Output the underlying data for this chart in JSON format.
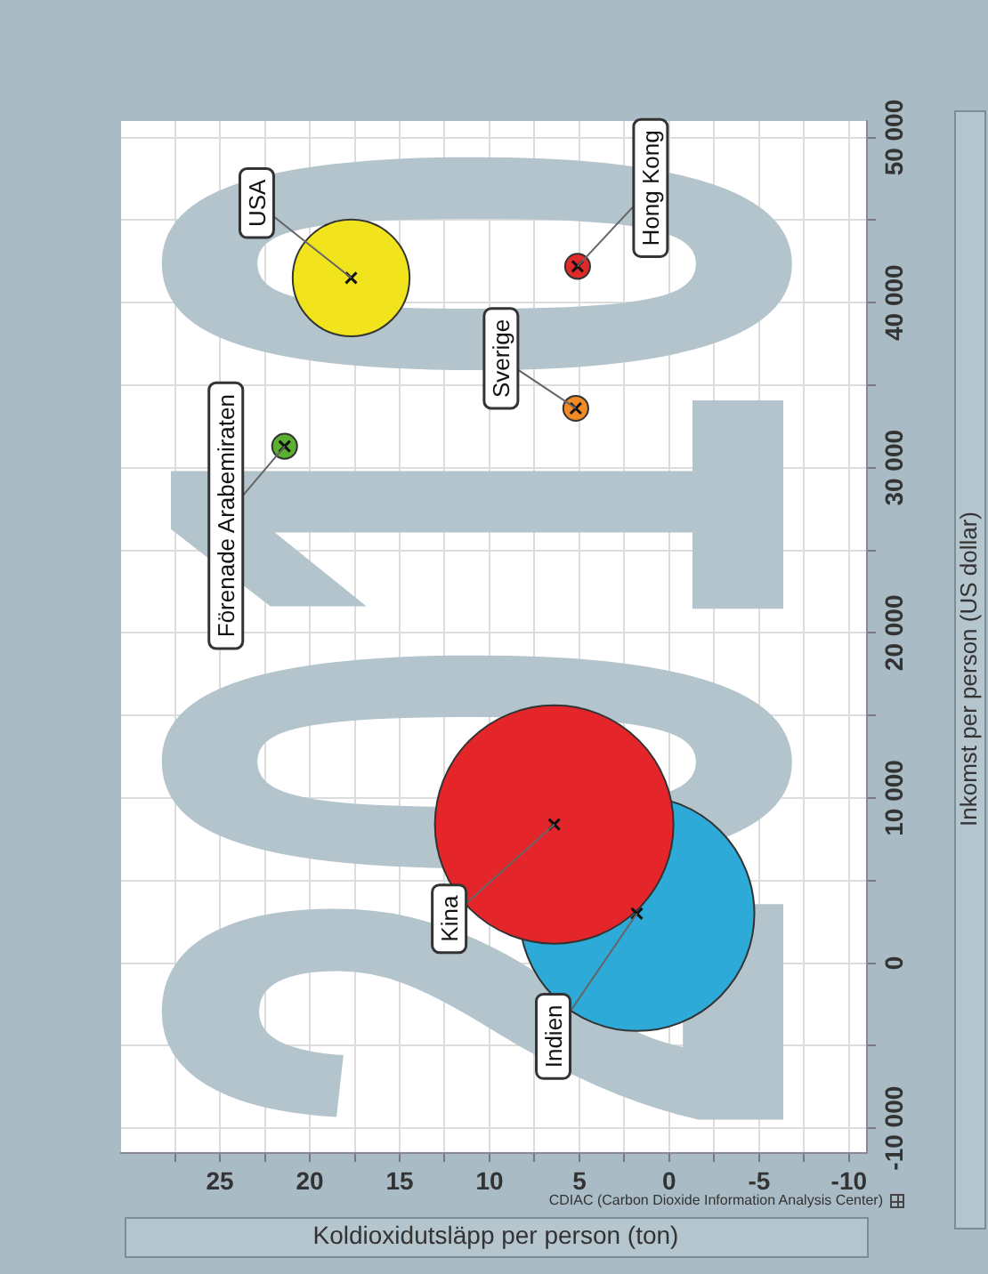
{
  "chart_data": {
    "type": "bubble",
    "xlabel": "Koldioxidutsläpp per person (ton)",
    "ylabel": "Inkomst per person (US dollar)",
    "xlim": [
      30.5,
      -11
    ],
    "ylim": [
      -11500,
      51000
    ],
    "xticks": [
      {
        "value": 27.5,
        "label": null
      },
      25,
      {
        "value": 22.5,
        "label": null
      },
      20,
      {
        "value": 17.5,
        "label": null
      },
      15,
      {
        "value": 12.5,
        "label": null
      },
      10,
      {
        "value": 7.5,
        "label": null
      },
      5,
      {
        "value": 2.5,
        "label": null
      },
      0,
      {
        "value": -2.5,
        "label": null
      },
      -5,
      {
        "value": -7.5,
        "label": null
      },
      -10
    ],
    "yticks": [
      {
        "value": -10000,
        "label": "-10 000"
      },
      {
        "value": -5000,
        "label": null
      },
      0,
      {
        "value": 5000,
        "label": null
      },
      {
        "value": 10000,
        "label": "10 000"
      },
      {
        "value": 15000,
        "label": null
      },
      {
        "value": 20000,
        "label": "20 000"
      },
      {
        "value": 25000,
        "label": null
      },
      {
        "value": 30000,
        "label": "30 000"
      },
      {
        "value": 35000,
        "label": null
      },
      {
        "value": 40000,
        "label": "40 000"
      },
      {
        "value": 45000,
        "label": null
      },
      {
        "value": 50000,
        "label": "50 000"
      }
    ],
    "grid": true,
    "annotations": [
      "2010",
      "CDIAC (Carbon Dioxide Information Analysis Center)"
    ],
    "series": [
      {
        "name": "USA",
        "color": "#f2e41c",
        "x": [
          17.7
        ],
        "values": [
          41500
        ],
        "sizes": [
          0.24
        ]
      },
      {
        "name": "Hong Kong",
        "color": "#e02a2a",
        "x": [
          5.1
        ],
        "values": [
          42200
        ],
        "sizes": [
          0.011
        ]
      },
      {
        "name": "Sverige",
        "color": "#f08a24",
        "x": [
          5.2
        ],
        "values": [
          33600
        ],
        "sizes": [
          0.011
        ]
      },
      {
        "name": "Förenade Arabemiraten",
        "color": "#5cb030",
        "x": [
          21.4
        ],
        "values": [
          31300
        ],
        "sizes": [
          0.011
        ]
      },
      {
        "name": "Kina",
        "color": "#e4252a",
        "x": [
          6.4
        ],
        "values": [
          8400
        ],
        "sizes": [
          1
        ]
      },
      {
        "name": "Indien",
        "color": "#2eaad8",
        "x": [
          1.8
        ],
        "values": [
          3000
        ],
        "sizes": [
          0.97
        ]
      }
    ]
  }
}
